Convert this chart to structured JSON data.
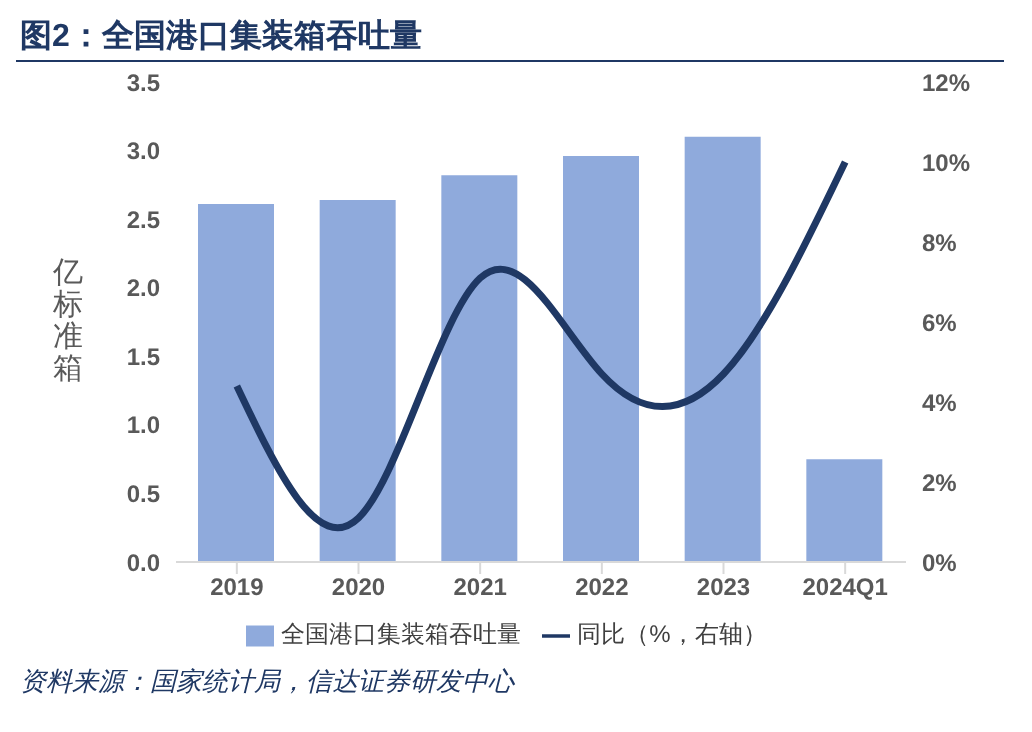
{
  "chart_data": {
    "type": "bar",
    "title": "图2：全国港口集装箱吞吐量",
    "categories": [
      "2019",
      "2020",
      "2021",
      "2022",
      "2023",
      "2024Q1"
    ],
    "series": [
      {
        "name": "全国港口集装箱吞吐量",
        "color": "#8faadc",
        "values": [
          2.61,
          2.64,
          2.82,
          2.96,
          3.1,
          0.75
        ]
      },
      {
        "name": "同比（%，右轴）",
        "type": "line",
        "axis": "y2",
        "color": "#1f3864",
        "values": [
          4.4,
          1.1,
          7.1,
          4.7,
          4.7,
          10.0
        ]
      }
    ],
    "ylabel": "亿标准箱",
    "ylim": [
      0,
      3.5
    ],
    "yticks": [
      {
        "value": 0,
        "label": "0.0"
      },
      {
        "value": 0.5,
        "label": "0.5"
      },
      {
        "value": 1,
        "label": "1.0"
      },
      {
        "value": 1.5,
        "label": "1.5"
      },
      {
        "value": 2,
        "label": "2.0"
      },
      {
        "value": 2.5,
        "label": "2.5"
      },
      {
        "value": 3,
        "label": "3.0"
      },
      {
        "value": 3.5,
        "label": "3.5"
      }
    ],
    "y2lim": [
      0,
      12
    ],
    "y2ticks": [
      {
        "value": 0,
        "label": "0%"
      },
      {
        "value": 2,
        "label": "2%"
      },
      {
        "value": 4,
        "label": "4%"
      },
      {
        "value": 6,
        "label": "6%"
      },
      {
        "value": 8,
        "label": "8%"
      },
      {
        "value": 10,
        "label": "10%"
      },
      {
        "value": 12,
        "label": "12%"
      }
    ],
    "legend": "bottom",
    "grid": false,
    "marker": "none",
    "line_style": "solid",
    "annotations": [
      "资料来源：国家统计局，信达证券研发中心"
    ]
  }
}
